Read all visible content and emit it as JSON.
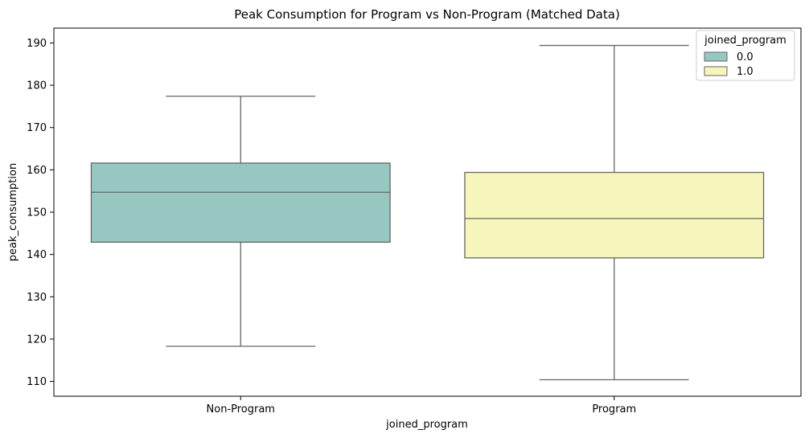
{
  "chart_data": {
    "type": "box",
    "title": "Peak Consumption for Program vs Non-Program (Matched Data)",
    "xlabel": "joined_program",
    "ylabel": "peak_consumption",
    "categories": [
      "Non-Program",
      "Program"
    ],
    "ylim": [
      106.5,
      193.5
    ],
    "yticks": [
      110,
      120,
      130,
      140,
      150,
      160,
      170,
      180,
      190
    ],
    "grid": false,
    "legend": {
      "title": "joined_program",
      "placement": "top-right",
      "entries": [
        {
          "label": "0.0",
          "color": "#96c8c1"
        },
        {
          "label": "1.0",
          "color": "#f6f5bc"
        }
      ]
    },
    "series": [
      {
        "category": "Non-Program",
        "hue": "0.0",
        "color": "#96c8c1",
        "whisker_low": 118.3,
        "q1": 142.9,
        "median": 154.7,
        "q3": 161.6,
        "whisker_high": 177.4
      },
      {
        "category": "Program",
        "hue": "1.0",
        "color": "#f6f5bc",
        "whisker_low": 110.4,
        "q1": 139.2,
        "median": 148.5,
        "q3": 159.4,
        "whisker_high": 189.4
      }
    ]
  }
}
